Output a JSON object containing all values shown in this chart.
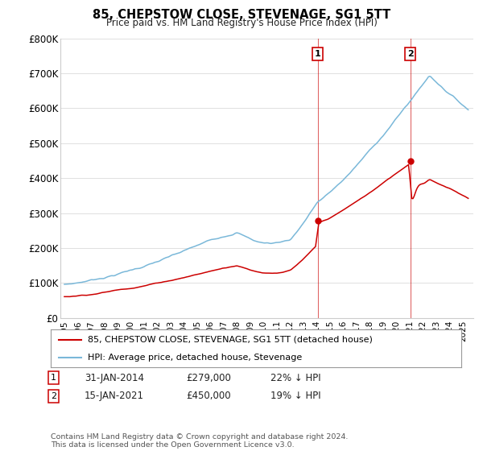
{
  "title": "85, CHEPSTOW CLOSE, STEVENAGE, SG1 5TT",
  "subtitle": "Price paid vs. HM Land Registry's House Price Index (HPI)",
  "footer": "Contains HM Land Registry data © Crown copyright and database right 2024.\nThis data is licensed under the Open Government Licence v3.0.",
  "legend_line1": "85, CHEPSTOW CLOSE, STEVENAGE, SG1 5TT (detached house)",
  "legend_line2": "HPI: Average price, detached house, Stevenage",
  "annotation1_label": "1",
  "annotation1_date": "31-JAN-2014",
  "annotation1_price": "£279,000",
  "annotation1_pct": "22% ↓ HPI",
  "annotation2_label": "2",
  "annotation2_date": "15-JAN-2021",
  "annotation2_price": "£450,000",
  "annotation2_pct": "19% ↓ HPI",
  "hpi_color": "#7ab8d9",
  "price_color": "#cc0000",
  "vline_color": "#cc0000",
  "marker_color": "#cc0000",
  "background_color": "#ffffff",
  "grid_color": "#e0e0e0",
  "sale1_year": 2014.083,
  "sale1_price": 279000,
  "sale2_year": 2021.042,
  "sale2_price": 450000,
  "xlim_start": 1994.7,
  "xlim_end": 2025.8,
  "ylim": [
    0,
    800000
  ],
  "yticks": [
    0,
    100000,
    200000,
    300000,
    400000,
    500000,
    600000,
    700000,
    800000
  ],
  "ytick_labels": [
    "£0",
    "£100K",
    "£200K",
    "£300K",
    "£400K",
    "£500K",
    "£600K",
    "£700K",
    "£800K"
  ]
}
